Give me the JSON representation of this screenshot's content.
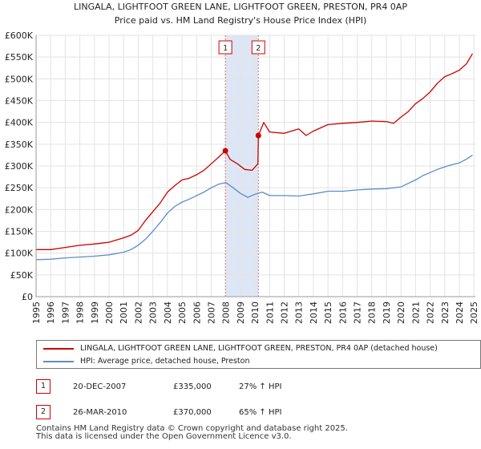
{
  "chart_data": {
    "type": "line",
    "title": "LINGALA, LIGHTFOOT GREEN LANE, LIGHTFOOT GREEN, PRESTON, PR4 0AP",
    "subtitle": "Price paid vs. HM Land Registry's House Price Index (HPI)",
    "xlabel": "",
    "ylabel": "",
    "xlim": [
      1995,
      2025.1
    ],
    "ylim": [
      0,
      600000
    ],
    "x_ticks": [
      1995,
      1996,
      1997,
      1998,
      1999,
      2000,
      2001,
      2002,
      2003,
      2004,
      2005,
      2006,
      2007,
      2008,
      2009,
      2010,
      2011,
      2012,
      2013,
      2014,
      2015,
      2016,
      2017,
      2018,
      2019,
      2020,
      2021,
      2022,
      2023,
      2024,
      2025
    ],
    "y_ticks": [
      0,
      50000,
      100000,
      150000,
      200000,
      250000,
      300000,
      350000,
      400000,
      450000,
      500000,
      550000,
      600000
    ],
    "y_tick_labels": [
      "£0",
      "£50K",
      "£100K",
      "£150K",
      "£200K",
      "£250K",
      "£300K",
      "£350K",
      "£400K",
      "£450K",
      "£500K",
      "£550K",
      "£600K"
    ],
    "grid": true,
    "shaded_region": [
      2007.97,
      2010.23
    ],
    "series": [
      {
        "name": "LINGALA, LIGHTFOOT GREEN LANE, LIGHTFOOT GREEN, PRESTON, PR4 0AP (detached house)",
        "color": "#cc0000",
        "x": [
          1995,
          1996,
          1997,
          1998,
          1999,
          2000,
          2001,
          2001.5,
          2002,
          2002.5,
          2003,
          2003.5,
          2004,
          2004.5,
          2005,
          2005.5,
          2006,
          2006.5,
          2007,
          2007.5,
          2007.97,
          2008.3,
          2008.8,
          2009.3,
          2009.8,
          2010.2,
          2010.23,
          2010.6,
          2011,
          2012,
          2013,
          2013.5,
          2014,
          2015,
          2016,
          2017,
          2018,
          2019,
          2019.5,
          2020,
          2020.5,
          2021,
          2021.5,
          2022,
          2022.5,
          2023,
          2023.5,
          2024,
          2024.5,
          2024.9
        ],
        "values": [
          108000,
          108000,
          113000,
          118000,
          121000,
          125000,
          135000,
          141000,
          152000,
          175000,
          195000,
          215000,
          240000,
          255000,
          268000,
          272000,
          280000,
          290000,
          305000,
          320000,
          335000,
          315000,
          305000,
          292000,
          290000,
          305000,
          370000,
          400000,
          378000,
          375000,
          385000,
          370000,
          380000,
          395000,
          398000,
          400000,
          403000,
          402000,
          398000,
          412000,
          425000,
          443000,
          455000,
          470000,
          490000,
          505000,
          512000,
          520000,
          535000,
          558000
        ]
      },
      {
        "name": "HPI: Average price, detached house, Preston",
        "color": "#5b8dc9",
        "x": [
          1995,
          1996,
          1997,
          1998,
          1999,
          2000,
          2001,
          2001.5,
          2002,
          2002.5,
          2003,
          2003.5,
          2004,
          2004.5,
          2005,
          2005.5,
          2006,
          2006.5,
          2007,
          2007.5,
          2008,
          2008.5,
          2009,
          2009.5,
          2010,
          2010.5,
          2011,
          2012,
          2013,
          2014,
          2015,
          2016,
          2017,
          2018,
          2019,
          2020,
          2020.5,
          2021,
          2021.5,
          2022,
          2022.5,
          2023,
          2023.5,
          2024,
          2024.5,
          2024.9
        ],
        "values": [
          85000,
          86000,
          89000,
          91000,
          93000,
          96000,
          102000,
          108000,
          118000,
          132000,
          150000,
          170000,
          192000,
          207000,
          217000,
          224000,
          232000,
          240000,
          250000,
          258000,
          262000,
          250000,
          237000,
          228000,
          235000,
          240000,
          232000,
          232000,
          231000,
          236000,
          242000,
          242000,
          245000,
          247000,
          248000,
          252000,
          260000,
          268000,
          278000,
          285000,
          292000,
          298000,
          303000,
          307000,
          316000,
          325000
        ]
      }
    ],
    "sales": [
      {
        "label": "1",
        "x": 2007.97,
        "value": 335000
      },
      {
        "label": "2",
        "x": 2010.23,
        "value": 370000
      }
    ]
  },
  "legend": {
    "property_label": "LINGALA, LIGHTFOOT GREEN LANE, LIGHTFOOT GREEN, PRESTON, PR4 0AP (detached house)",
    "hpi_label": "HPI: Average price, detached house, Preston"
  },
  "annotations": [
    {
      "num": "1",
      "date": "20-DEC-2007",
      "price": "£335,000",
      "hpi": "27% ↑ HPI"
    },
    {
      "num": "2",
      "date": "26-MAR-2010",
      "price": "£370,000",
      "hpi": "65% ↑ HPI"
    }
  ],
  "footer": {
    "line1": "Contains HM Land Registry data © Crown copyright and database right 2025.",
    "line2": "This data is licensed under the Open Government Licence v3.0."
  }
}
